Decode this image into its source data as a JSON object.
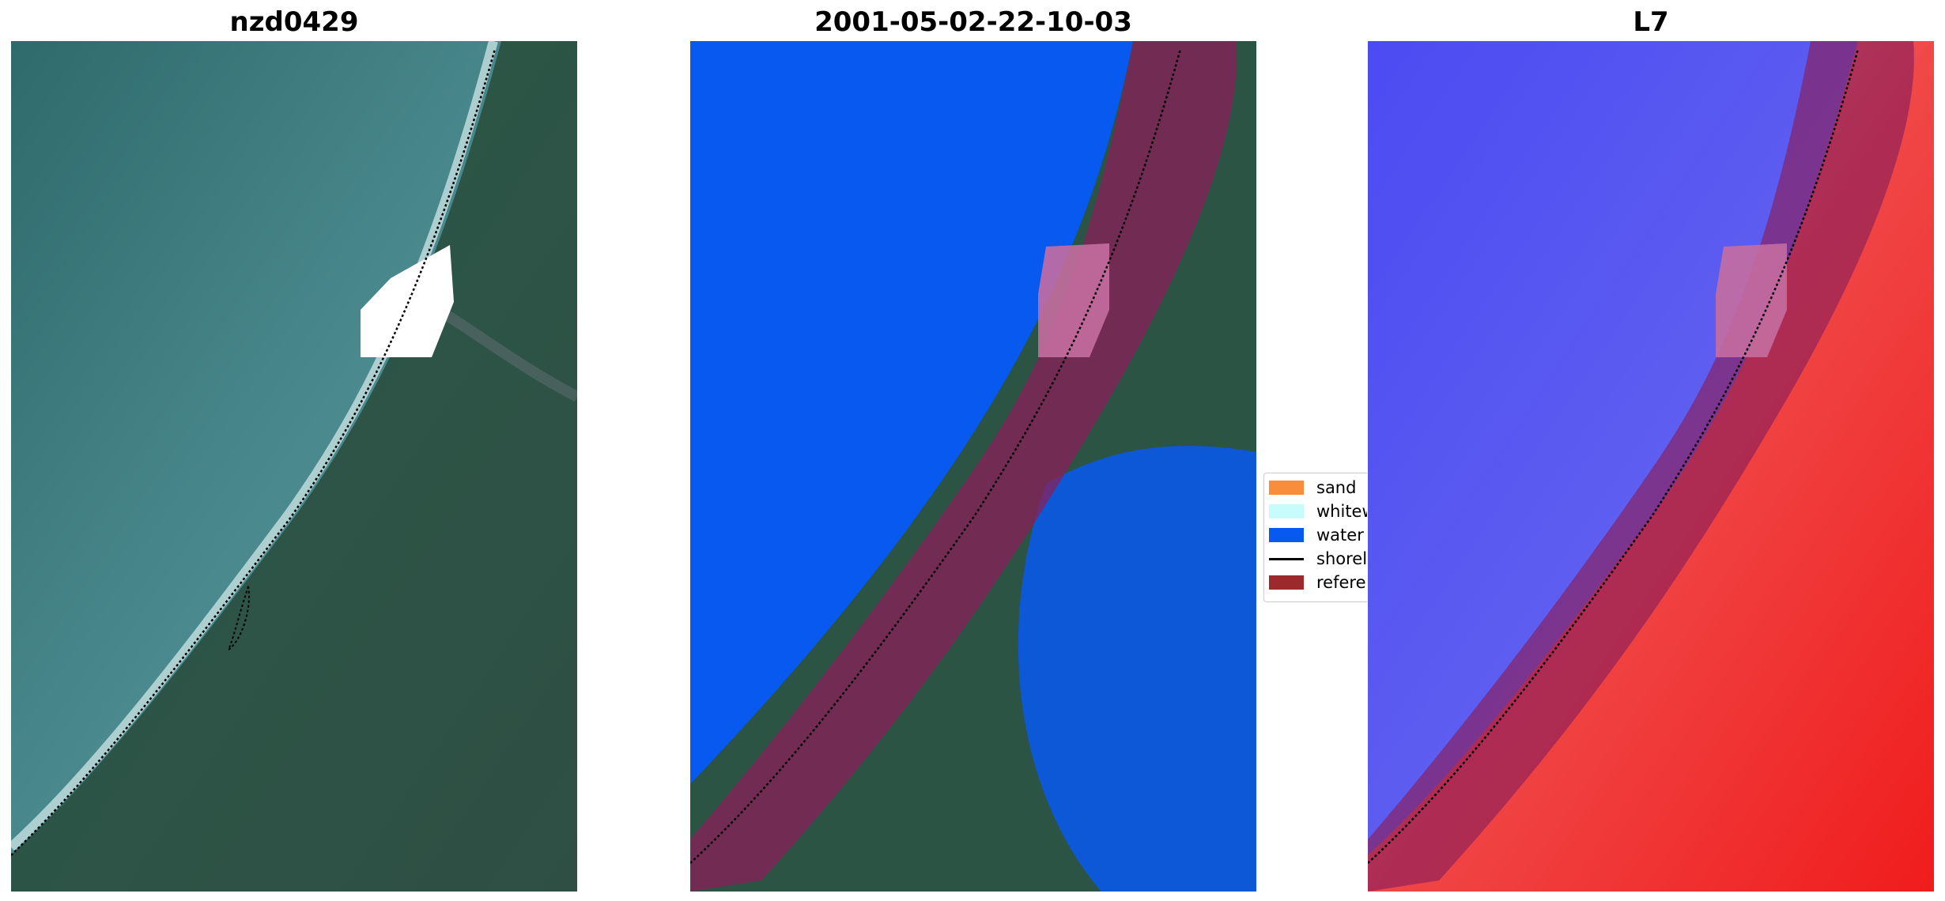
{
  "panels": [
    {
      "title": "nzd0429"
    },
    {
      "title": "2001-05-02-22-10-03"
    },
    {
      "title": "L7"
    }
  ],
  "legend": {
    "items": [
      {
        "label": "sand",
        "color": "#f88e3c",
        "kind": "patch"
      },
      {
        "label": "whitewater",
        "color": "#c8fcfc",
        "kind": "patch"
      },
      {
        "label": "water",
        "color": "#0759f0",
        "kind": "patch"
      },
      {
        "label": "shoreline",
        "color": "#000000",
        "kind": "line"
      },
      {
        "label": "reference shoreline buffer",
        "color": "#9c2a2c",
        "kind": "patch"
      }
    ]
  },
  "colors": {
    "ocean": "#3d7f83",
    "land": "#2c5444",
    "water_class": "#0759f0",
    "buffer": "#8a1f5a",
    "index_negative": "#5a5ae8",
    "index_positive": "#f03a3a",
    "cloud_mask": "#ffffff"
  }
}
